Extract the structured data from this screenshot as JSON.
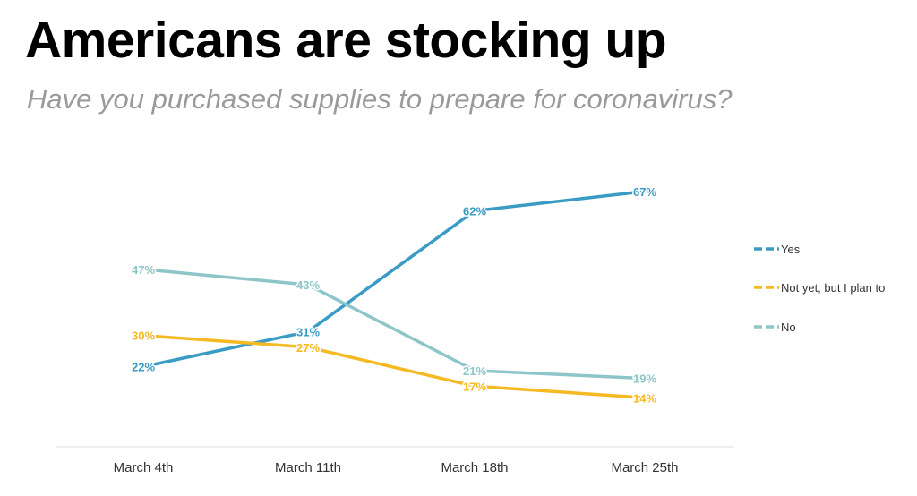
{
  "header": {
    "title": "Americans are stocking up",
    "subtitle": "Have you purchased supplies to prepare for coronavirus?"
  },
  "chart_data": {
    "type": "line",
    "categories": [
      "March 4th",
      "March 11th",
      "March 18th",
      "March 25th"
    ],
    "ylim": [
      0,
      100
    ],
    "grid": false,
    "legend_position": "right",
    "series": [
      {
        "name": "Yes",
        "values": [
          22,
          31,
          62,
          67
        ],
        "labels": [
          "22%",
          "31%",
          "62%",
          "67%"
        ],
        "color": "#3a9cc4"
      },
      {
        "name": "Not yet, but I plan to",
        "values": [
          30,
          27,
          17,
          14
        ],
        "labels": [
          "30%",
          "27%",
          "17%",
          "14%"
        ],
        "color": "#f5b921"
      },
      {
        "name": "No",
        "values": [
          47,
          43,
          21,
          19
        ],
        "labels": [
          "47%",
          "43%",
          "21%",
          "19%"
        ],
        "color": "#8ec5c8"
      }
    ]
  }
}
